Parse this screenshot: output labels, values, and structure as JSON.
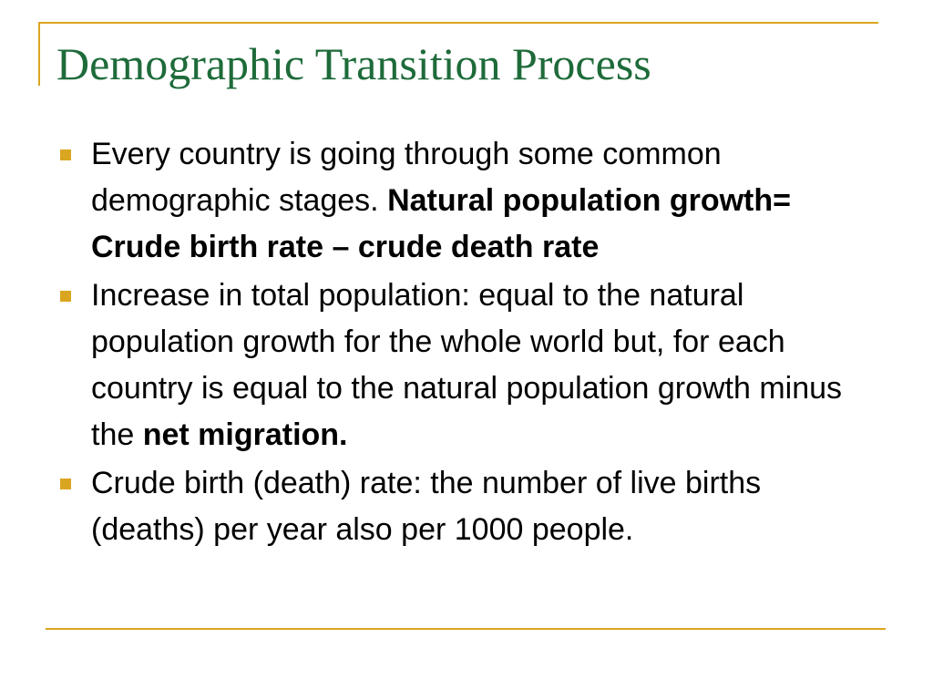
{
  "colors": {
    "accent": "#DAA520",
    "title": "#1E6B3A",
    "text": "#000000",
    "background": "#FFFFFF"
  },
  "slide": {
    "title": "Demographic Transition Process",
    "bullets": [
      {
        "text": "Every country is going through some common demographic stages.",
        "bold": "Natural population growth= Crude birth rate – crude death rate"
      },
      {
        "text": "Increase in total population: equal to the natural population growth for the whole world but, for each country is equal to the natural population growth minus the",
        "bold": "net migration."
      },
      {
        "text": "Crude birth (death) rate: the number of live births (deaths) per year also per 1000 people.",
        "bold": ""
      }
    ]
  }
}
